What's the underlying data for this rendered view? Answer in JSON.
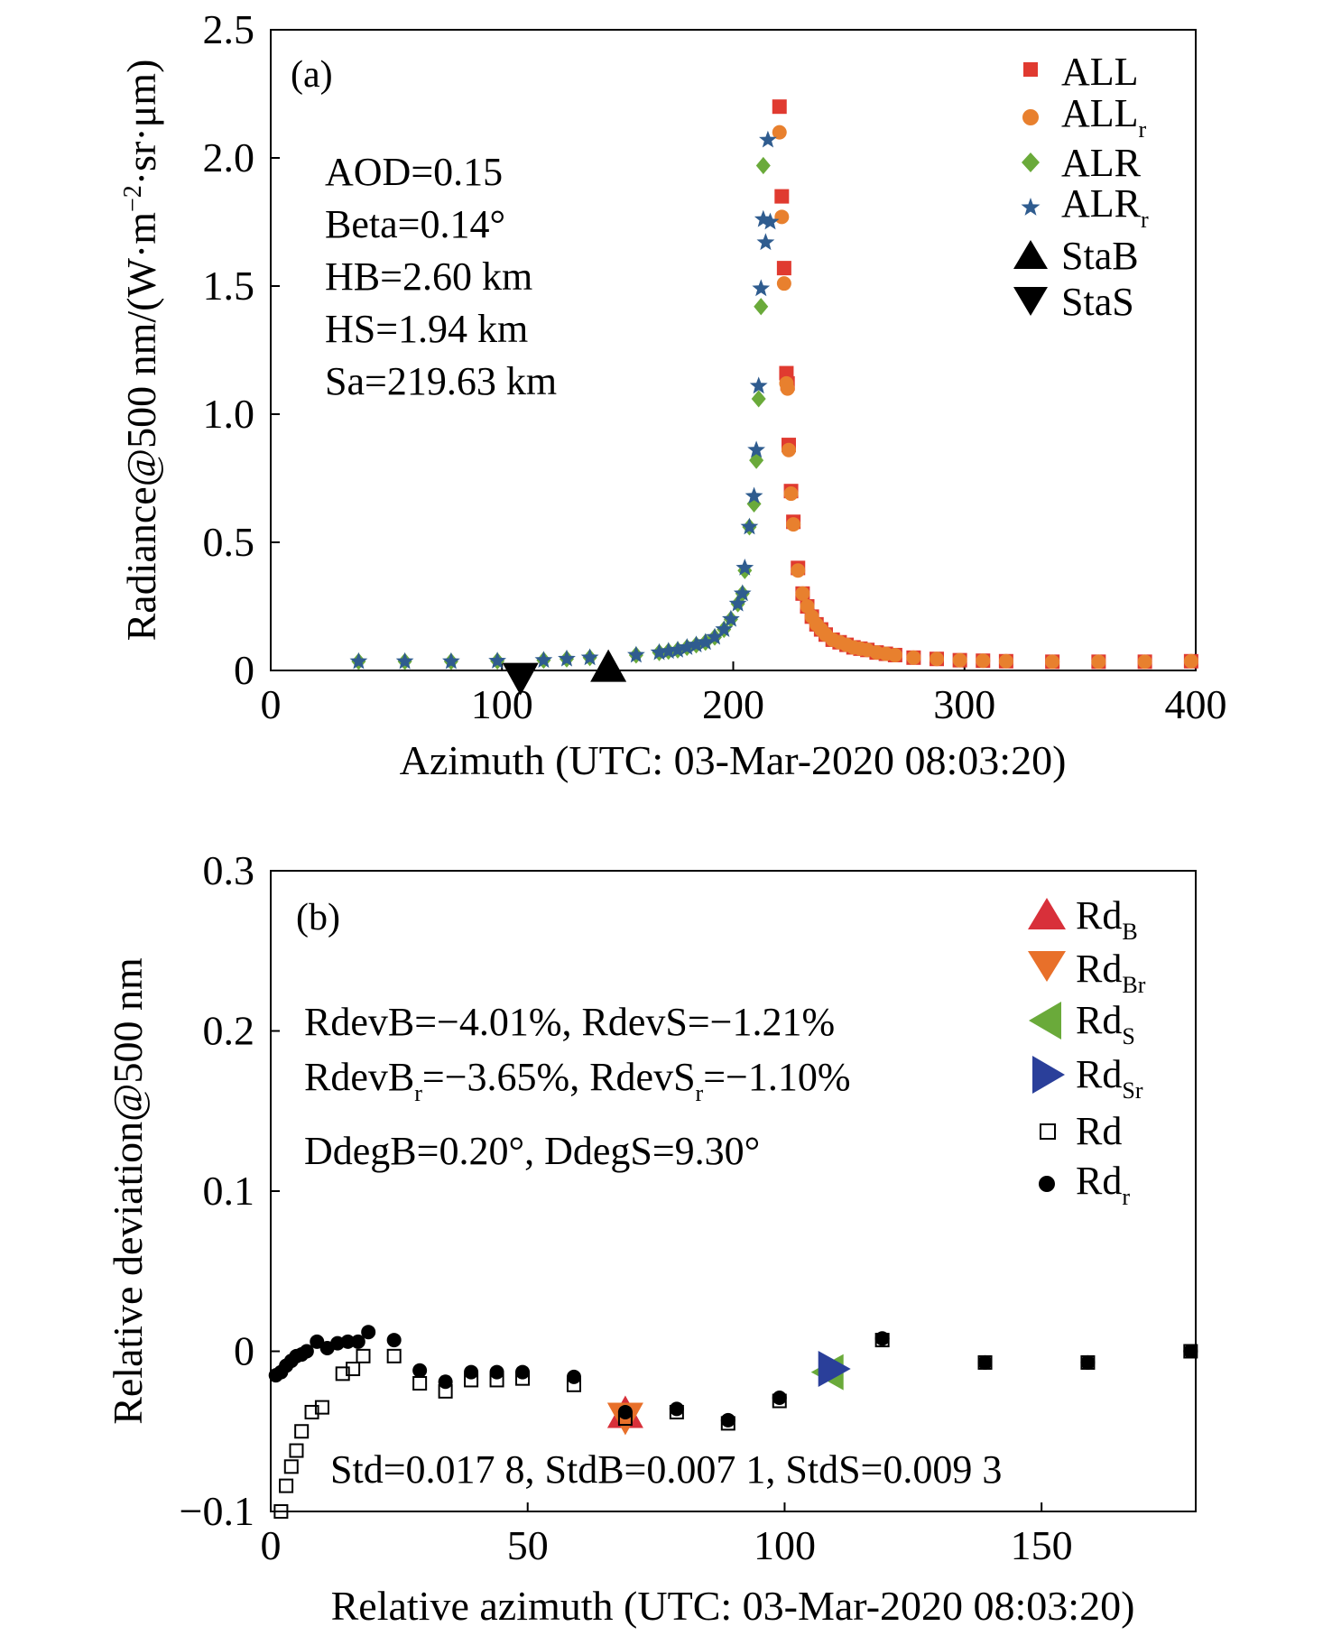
{
  "chart_data": [
    {
      "panel": "(a)",
      "type": "scatter",
      "xlabel": "Azimuth (UTC: 03-Mar-2020 08:03:20)",
      "ylabel": "Radiance@500 nm/(W·m⁻²·sr·μm)",
      "xlim": [
        0,
        400
      ],
      "ylim": [
        0,
        2.5
      ],
      "xticks": [
        "0",
        "100",
        "200",
        "300",
        "400"
      ],
      "yticks": [
        "0",
        "0.5",
        "1.0",
        "1.5",
        "2.0",
        "2.5"
      ],
      "legend_position": "top-right",
      "annotations": [
        "AOD=0.15",
        "Beta=0.14°",
        "HB=2.60 km",
        "HS=1.94 km",
        "Sa=219.63 km"
      ],
      "series": [
        {
          "name": "ALL",
          "marker": "square",
          "color": "#e03a30",
          "x": [
            220,
            221,
            222,
            223,
            223.5,
            224,
            225,
            226,
            228,
            230,
            232,
            234,
            236,
            238,
            240,
            243,
            246,
            249,
            252,
            255,
            258,
            262,
            266,
            270,
            278,
            288,
            298,
            308,
            318,
            338,
            358,
            378,
            398
          ],
          "y": [
            2.2,
            1.85,
            1.57,
            1.16,
            1.12,
            0.88,
            0.7,
            0.58,
            0.4,
            0.3,
            0.25,
            0.21,
            0.18,
            0.16,
            0.14,
            0.12,
            0.11,
            0.1,
            0.09,
            0.085,
            0.08,
            0.07,
            0.065,
            0.06,
            0.05,
            0.045,
            0.04,
            0.038,
            0.036,
            0.034,
            0.034,
            0.034,
            0.036
          ]
        },
        {
          "name": "ALL_r",
          "marker": "circle",
          "color": "#e8802e",
          "x": [
            220,
            221,
            222,
            223,
            223.5,
            224,
            225,
            226,
            228,
            230,
            232,
            234,
            236,
            238,
            240,
            243,
            246,
            249,
            252,
            255,
            258,
            262,
            266,
            270,
            278,
            288,
            298,
            308,
            318,
            338,
            358,
            378,
            398
          ],
          "y": [
            2.1,
            1.77,
            1.51,
            1.12,
            1.1,
            0.86,
            0.69,
            0.57,
            0.39,
            0.3,
            0.25,
            0.21,
            0.18,
            0.16,
            0.14,
            0.12,
            0.11,
            0.1,
            0.09,
            0.085,
            0.08,
            0.07,
            0.065,
            0.06,
            0.05,
            0.045,
            0.04,
            0.038,
            0.036,
            0.034,
            0.034,
            0.034,
            0.036
          ]
        },
        {
          "name": "ALR",
          "marker": "diamond",
          "color": "#6aaa3a",
          "x": [
            38,
            58,
            78,
            98,
            118,
            128,
            138,
            158,
            168,
            172,
            176,
            180,
            184,
            188,
            192,
            196,
            199,
            202,
            204,
            205,
            207,
            209,
            210,
            211,
            212,
            213
          ],
          "y": [
            0.035,
            0.035,
            0.035,
            0.037,
            0.04,
            0.045,
            0.05,
            0.06,
            0.07,
            0.075,
            0.08,
            0.09,
            0.1,
            0.11,
            0.13,
            0.16,
            0.2,
            0.26,
            0.3,
            0.39,
            0.56,
            0.65,
            0.82,
            1.06,
            1.42,
            1.97
          ]
        },
        {
          "name": "ALR_r",
          "marker": "star",
          "color": "#2f5c8f",
          "x": [
            38,
            58,
            78,
            98,
            118,
            128,
            138,
            158,
            168,
            172,
            176,
            180,
            184,
            188,
            192,
            196,
            199,
            202,
            204,
            205,
            207,
            209,
            210,
            211,
            212,
            213,
            214,
            215,
            216
          ],
          "y": [
            0.035,
            0.035,
            0.035,
            0.037,
            0.04,
            0.045,
            0.05,
            0.06,
            0.07,
            0.075,
            0.08,
            0.09,
            0.1,
            0.11,
            0.13,
            0.16,
            0.2,
            0.26,
            0.3,
            0.4,
            0.56,
            0.68,
            0.86,
            1.11,
            1.49,
            1.76,
            1.67,
            2.07,
            1.75
          ]
        },
        {
          "name": "StaB",
          "marker": "triangle-up",
          "color": "#000000",
          "x": [
            146
          ],
          "y": [
            0.005
          ]
        },
        {
          "name": "StaS",
          "marker": "triangle-down",
          "color": "#000000",
          "x": [
            108
          ],
          "y": [
            -0.02
          ]
        }
      ]
    },
    {
      "panel": "(b)",
      "type": "scatter",
      "xlabel": "Relative azimuth (UTC: 03-Mar-2020 08:03:20)",
      "ylabel": "Relative deviation@500 nm",
      "xlim": [
        0,
        180
      ],
      "ylim": [
        -0.1,
        0.3
      ],
      "xticks": [
        "0",
        "50",
        "100",
        "150"
      ],
      "yticks": [
        "−0.1",
        "0",
        "0.1",
        "0.2",
        "0.3"
      ],
      "legend_position": "top-right",
      "annotations": [
        "RdevB=−4.01%, RdevS=−1.21%",
        "RdevB_r=−3.65%, RdevS_r=−1.10%",
        "DdegB=0.20°, DdegS=9.30°",
        "Std=0.017 8, StdB=0.007 1, StdS=0.009 3"
      ],
      "series": [
        {
          "name": "Rd_B",
          "marker": "triangle-up",
          "color": "#d8303a",
          "x": [
            69
          ],
          "y": [
            -0.04
          ]
        },
        {
          "name": "Rd_Br",
          "marker": "triangle-down",
          "color": "#e8702a",
          "x": [
            69
          ],
          "y": [
            -0.04
          ]
        },
        {
          "name": "Rd_S",
          "marker": "triangle-left",
          "color": "#6aaa3a",
          "x": [
            109
          ],
          "y": [
            -0.013
          ]
        },
        {
          "name": "Rd_Sr",
          "marker": "triangle-right",
          "color": "#2a3f9a",
          "x": [
            109
          ],
          "y": [
            -0.011
          ]
        },
        {
          "name": "Rd",
          "marker": "open-square",
          "color": "#000000",
          "x": [
            2,
            3,
            4,
            5,
            6,
            8,
            10,
            14,
            16,
            18,
            24,
            29,
            34,
            39,
            44,
            49,
            59,
            69,
            79,
            89,
            99,
            119,
            139,
            159,
            179
          ],
          "y": [
            -0.1,
            -0.084,
            -0.072,
            -0.062,
            -0.05,
            -0.038,
            -0.035,
            -0.014,
            -0.011,
            -0.003,
            -0.003,
            -0.02,
            -0.025,
            -0.018,
            -0.018,
            -0.017,
            -0.021,
            -0.042,
            -0.038,
            -0.045,
            -0.031,
            0.007,
            -0.007,
            -0.007,
            0.0
          ]
        },
        {
          "name": "Rd_r",
          "marker": "filled-circle",
          "color": "#000000",
          "x": [
            1,
            2,
            3,
            4,
            5,
            6,
            7,
            9,
            11,
            13,
            15,
            17,
            19,
            24,
            29,
            34,
            39,
            44,
            49,
            59,
            69,
            79,
            89,
            99,
            119,
            139,
            159,
            179
          ],
          "y": [
            -0.015,
            -0.013,
            -0.009,
            -0.006,
            -0.003,
            -0.002,
            0.0,
            0.006,
            0.002,
            0.005,
            0.006,
            0.006,
            0.012,
            0.007,
            -0.012,
            -0.019,
            -0.013,
            -0.013,
            -0.013,
            -0.016,
            -0.038,
            -0.036,
            -0.043,
            -0.029,
            0.008,
            -0.007,
            -0.007,
            0.0
          ]
        }
      ]
    }
  ]
}
